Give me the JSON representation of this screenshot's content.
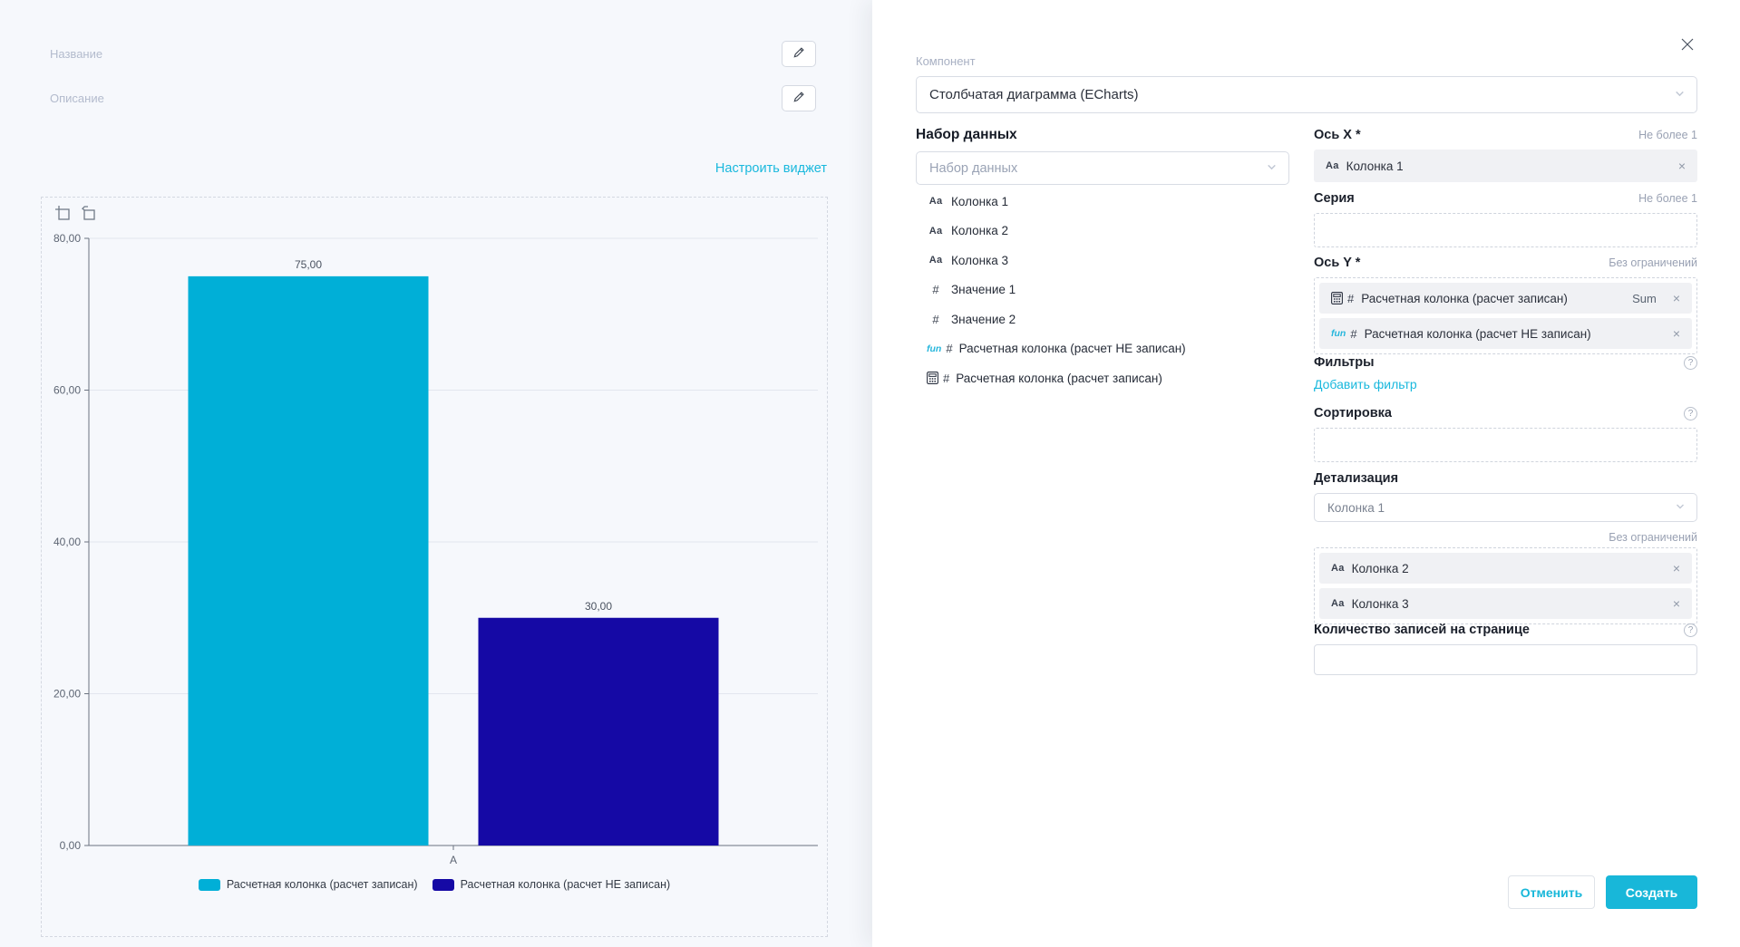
{
  "accent": "#18b7d9",
  "left_pane": {
    "name_label": "Название",
    "description_label": "Описание",
    "configure_link": "Настроить виджет"
  },
  "chart_data": {
    "type": "bar",
    "title": "",
    "categories": [
      "A"
    ],
    "series": [
      {
        "name": "Расчетная колонка (расчет записан)",
        "values": [
          75
        ],
        "value_labels": [
          "75,00"
        ],
        "color": "#00AFD7"
      },
      {
        "name": "Расчетная колонка (расчет НЕ записан)",
        "values": [
          30
        ],
        "value_labels": [
          "30,00"
        ],
        "color": "#1509A5"
      }
    ],
    "xlabel": "",
    "ylabel": "",
    "ylim": [
      0,
      80
    ],
    "yticks": [
      0,
      20,
      40,
      60,
      80
    ],
    "ytick_labels": [
      "0,00",
      "20,00",
      "40,00",
      "60,00",
      "80,00"
    ],
    "grid": true,
    "legend_position": "bottom"
  },
  "panel": {
    "component_label": "Компонент",
    "component_value": "Столбчатая диаграмма (ECharts)",
    "dataset": {
      "header": "Набор данных",
      "placeholder": "Набор данных",
      "fields": [
        {
          "icon": "text",
          "label": "Колонка 1"
        },
        {
          "icon": "text",
          "label": "Колонка 2"
        },
        {
          "icon": "text",
          "label": "Колонка 3"
        },
        {
          "icon": "number",
          "label": "Значение 1"
        },
        {
          "icon": "number",
          "label": "Значение 2"
        },
        {
          "icon": "function-number",
          "label": "Расчетная колонка (расчет НЕ записан)"
        },
        {
          "icon": "calc-number",
          "label": "Расчетная колонка (расчет записан)"
        }
      ]
    },
    "axis_x": {
      "label": "Ось X *",
      "hint": "Не более 1",
      "tags": [
        {
          "icon": "text",
          "label": "Колонка 1"
        }
      ]
    },
    "series_field": {
      "label": "Серия",
      "hint": "Не более 1"
    },
    "axis_y": {
      "label": "Ось Y *",
      "hint": "Без ограничений",
      "tags": [
        {
          "icon": "calc-number",
          "label": "Расчетная колонка (расчет записан)",
          "agg": "Sum"
        },
        {
          "icon": "function-number",
          "label": "Расчетная колонка (расчет НЕ записан)"
        }
      ]
    },
    "filters": {
      "label": "Фильтры",
      "add_link": "Добавить фильтр"
    },
    "sorting": {
      "label": "Сортировка"
    },
    "detail": {
      "label": "Детализация",
      "value": "Колонка 1",
      "hint": "Без ограничений",
      "tags": [
        {
          "icon": "text",
          "label": "Колонка 2"
        },
        {
          "icon": "text",
          "label": "Колонка 3"
        }
      ]
    },
    "page_size": {
      "label": "Количество записей на странице"
    },
    "cancel_button": "Отменить",
    "create_button": "Создать"
  }
}
